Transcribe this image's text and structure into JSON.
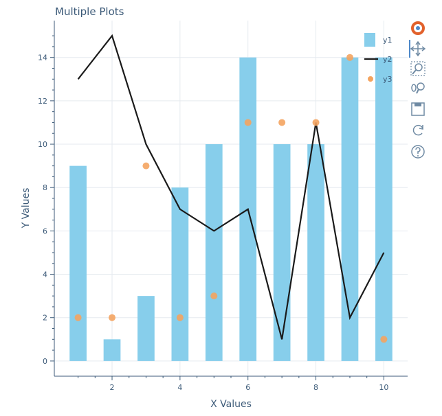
{
  "chart_data": {
    "type": "bar",
    "title": "Multiple Plots",
    "xlabel": "X Values",
    "ylabel": "Y Values",
    "xlim": [
      0.3,
      10.7
    ],
    "ylim": [
      -0.7,
      15.7
    ],
    "x_ticks": [
      2,
      4,
      6,
      8,
      10
    ],
    "y_ticks": [
      0,
      2,
      4,
      6,
      8,
      10,
      12,
      14
    ],
    "grid": true,
    "legend": "top-right",
    "x": [
      1,
      2,
      3,
      4,
      5,
      6,
      7,
      8,
      9,
      10
    ],
    "series": [
      {
        "name": "y1",
        "type": "bar",
        "color": "#87ceeb",
        "values": [
          9,
          1,
          3,
          8,
          10,
          14,
          10,
          10,
          14,
          14
        ]
      },
      {
        "name": "y2",
        "type": "line",
        "color": "#1a1a1a",
        "values": [
          13,
          15,
          10,
          7,
          6,
          7,
          1,
          11,
          2,
          5
        ]
      },
      {
        "name": "y3",
        "type": "scatter",
        "color": "#f4a460",
        "values": [
          2,
          2,
          9,
          2,
          3,
          11,
          11,
          11,
          14,
          1
        ]
      }
    ]
  },
  "toolbar": {
    "items": [
      {
        "name": "bokeh-logo-icon",
        "interactable": false
      },
      {
        "name": "pan-tool-icon",
        "interactable": true
      },
      {
        "name": "box-zoom-tool-icon",
        "interactable": true
      },
      {
        "name": "wheel-zoom-tool-icon",
        "interactable": true
      },
      {
        "name": "save-tool-icon",
        "interactable": true
      },
      {
        "name": "reset-tool-icon",
        "interactable": true
      },
      {
        "name": "help-tool-icon",
        "interactable": true
      }
    ]
  },
  "colors": {
    "axis": "#3c5a78",
    "grid": "#e5eaef",
    "toolbar_icon": "#6f8aa3",
    "logo_primary": "#e2612b",
    "logo_secondary": "#4d88c9"
  }
}
